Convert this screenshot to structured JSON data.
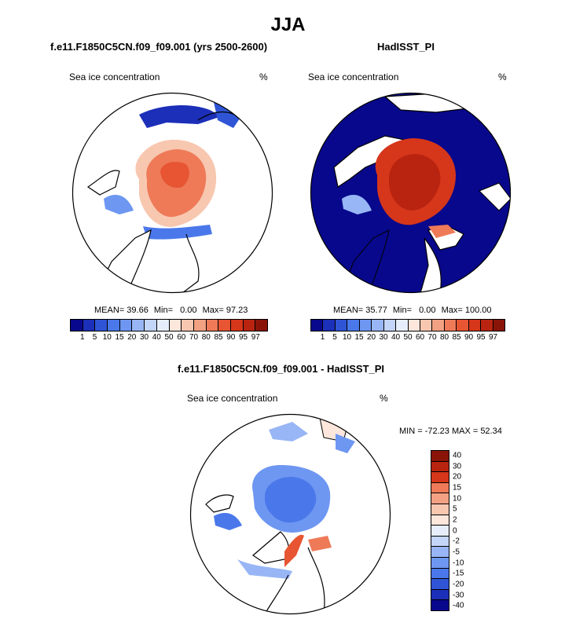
{
  "title": "JJA",
  "panel_left": {
    "subtitle": "f.e11.F1850C5CN.f09_f09.001 (yrs 2500-2600)",
    "variable": "Sea ice concentration",
    "units": "%",
    "stats": {
      "mean_label": "MEAN=",
      "mean": "39.66",
      "min_label": "Min=",
      "min": "0.00",
      "max_label": "Max=",
      "max": "97.23"
    }
  },
  "panel_right": {
    "subtitle": "HadISST_PI",
    "variable": "Sea ice concentration",
    "units": "%",
    "stats": {
      "mean_label": "MEAN=",
      "mean": "35.77",
      "min_label": "Min=",
      "min": "0.00",
      "max_label": "Max=",
      "max": "100.00"
    }
  },
  "panel_diff": {
    "subtitle": "f.e11.F1850C5CN.f09_f09.001 - HadISST_PI",
    "variable": "Sea ice concentration",
    "units": "%",
    "minmax": "MIN = -72.23 MAX =  52.34"
  },
  "abs_colorbar": {
    "colors": [
      "#08088c",
      "#1c2fb8",
      "#2f55d6",
      "#4a78ea",
      "#6e97f2",
      "#98b6f5",
      "#c3d5f8",
      "#e6eefb",
      "#fde6dc",
      "#f8c7b0",
      "#f3a183",
      "#ee7a58",
      "#e75532",
      "#d6361a",
      "#b8240f",
      "#8a1408"
    ],
    "labels": [
      "1",
      "5",
      "10",
      "15",
      "20",
      "30",
      "40",
      "50",
      "60",
      "70",
      "80",
      "85",
      "90",
      "95",
      "97"
    ]
  },
  "diff_colorbar": {
    "colors": [
      "#8a1408",
      "#b8240f",
      "#d6361a",
      "#ee7a58",
      "#f3a183",
      "#f8c7b0",
      "#fde6dc",
      "#e6eefb",
      "#c3d5f8",
      "#98b6f5",
      "#6e97f2",
      "#4a78ea",
      "#2f55d6",
      "#1c2fb8",
      "#08088c"
    ],
    "labels": [
      "40",
      "30",
      "20",
      "15",
      "10",
      "5",
      "2",
      "0",
      "-2",
      "-5",
      "-10",
      "-15",
      "-20",
      "-30",
      "-40"
    ]
  }
}
